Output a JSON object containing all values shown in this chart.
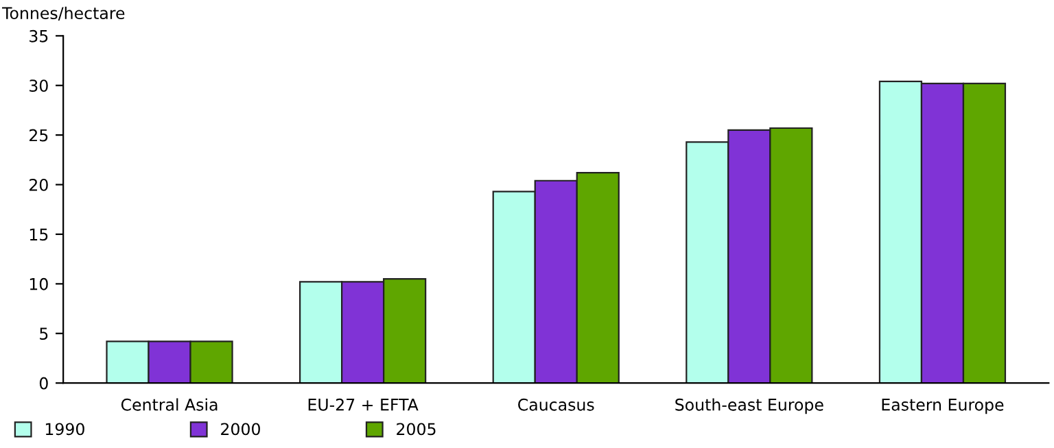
{
  "chart_data": {
    "type": "bar",
    "ylabel": "Tonnes/hectare",
    "categories": [
      "Central Asia",
      "EU-27 + EFTA",
      "Caucasus",
      "South-east Europe",
      "Eastern Europe"
    ],
    "series": [
      {
        "name": "1990",
        "color": "#b3ffec",
        "values": [
          4.2,
          10.2,
          19.3,
          24.3,
          30.4
        ]
      },
      {
        "name": "2000",
        "color": "#8033d6",
        "values": [
          4.2,
          10.2,
          20.4,
          25.5,
          30.2
        ]
      },
      {
        "name": "2005",
        "color": "#5fa600",
        "values": [
          4.2,
          10.5,
          21.2,
          25.7,
          30.2
        ]
      }
    ],
    "ylim": [
      0,
      35
    ],
    "yticks": [
      0,
      5,
      10,
      15,
      20,
      25,
      30,
      35
    ],
    "grid": false,
    "legend": "bottom left"
  }
}
